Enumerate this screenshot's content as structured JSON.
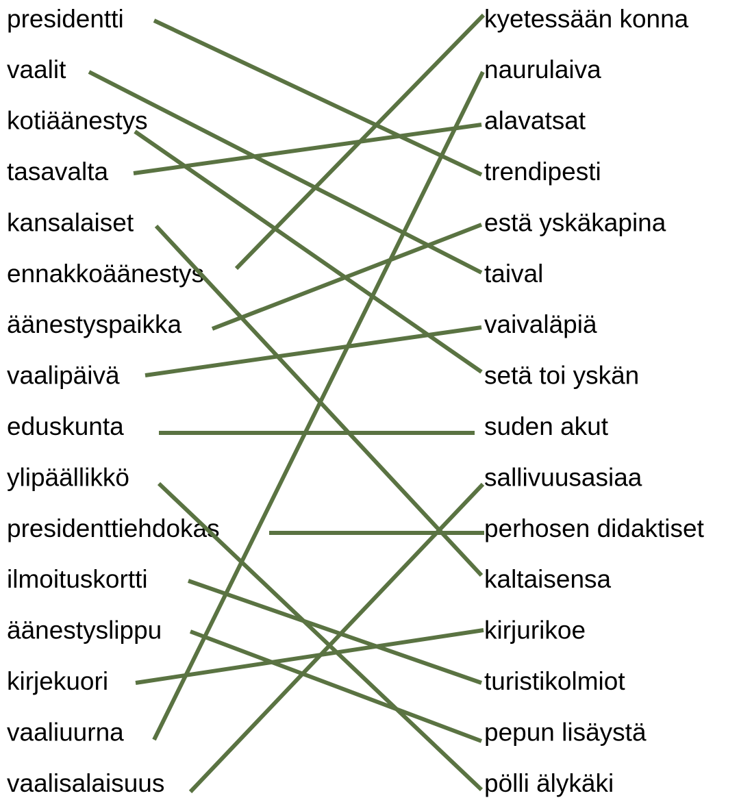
{
  "left": [
    "presidentti",
    "vaalit",
    "kotiäänestys",
    "tasavalta",
    "kansalaiset",
    "ennakkoäänestys",
    "äänestyspaikka",
    "vaalipäivä",
    "eduskunta",
    "ylipäällikkö",
    "presidenttiehdokas",
    "ilmoituskortti",
    "äänestyslippu",
    "kirjekuori",
    "vaaliuurna",
    "vaalisalaisuus"
  ],
  "right": [
    "kyetessään konna",
    "naurulaiva",
    "alavatsat",
    "trendipesti",
    "estä yskäkapina",
    "taival",
    "vaivaläpiä",
    "setä toi yskän",
    "suden akut",
    "sallivuusasiaa",
    "perhosen didaktiset",
    "kaltaisensa",
    "kirjurikoe",
    "turistikolmiot",
    "pepun lisäystä",
    "pölli älykäki"
  ]
}
